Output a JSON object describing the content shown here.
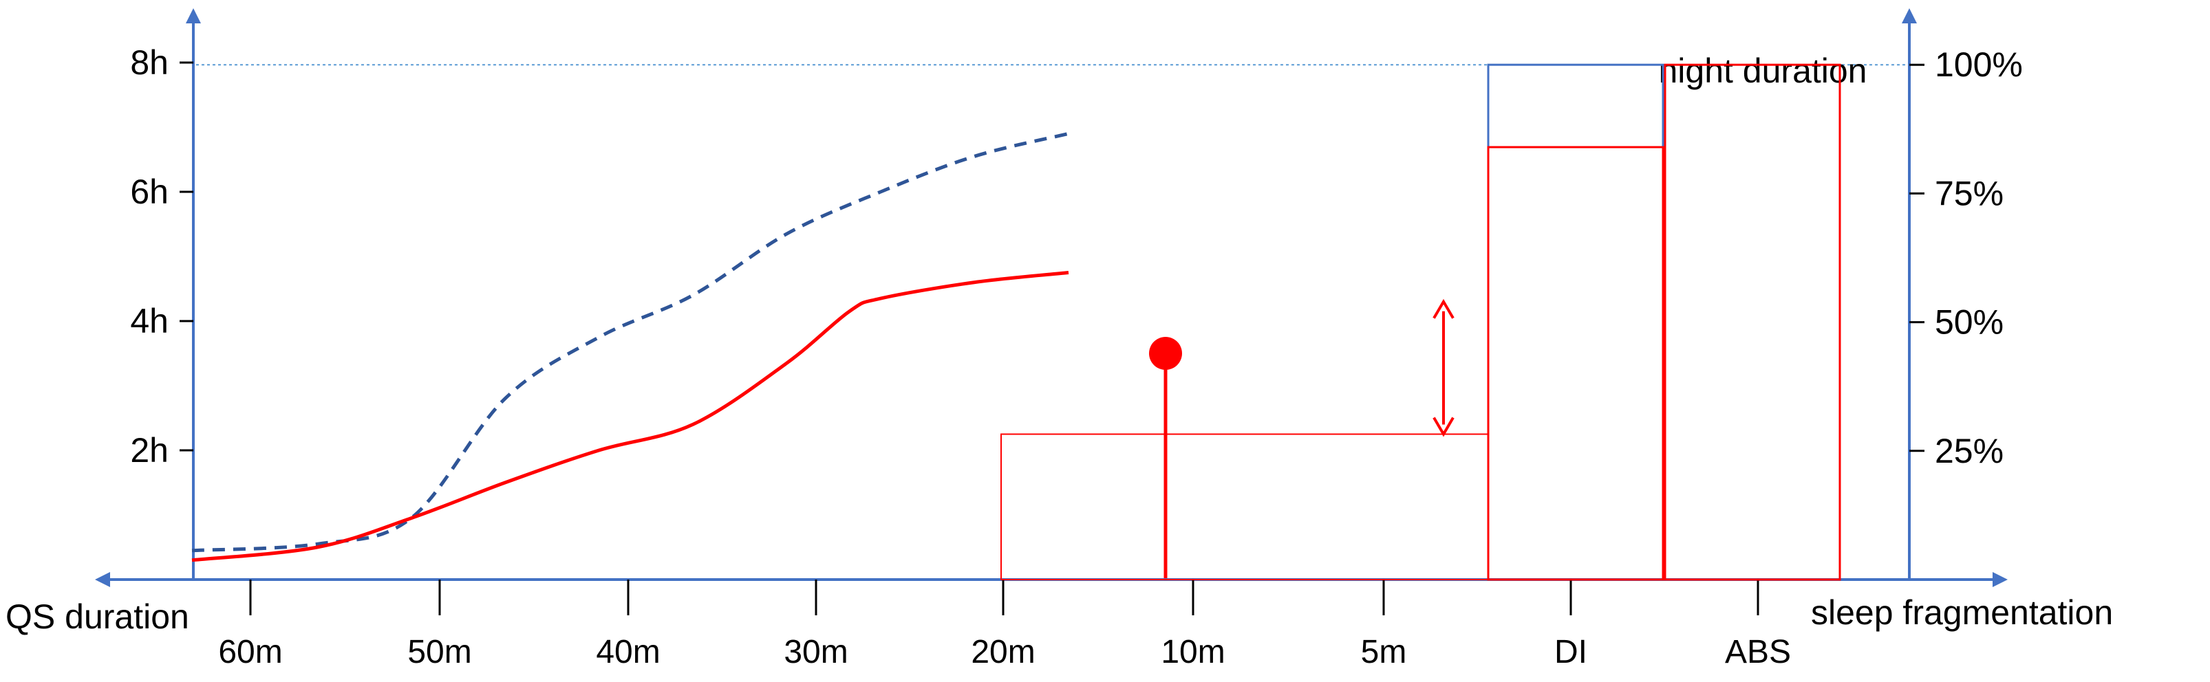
{
  "colors": {
    "axis": "#4472C4",
    "red": "#FF0000",
    "dashed": "#2F5597",
    "ref_line": "#5B9BD5"
  },
  "chart_data": {
    "type": "line",
    "left_axis": {
      "ticks": [
        {
          "value": 2,
          "label": "2h"
        },
        {
          "value": 4,
          "label": "4h"
        },
        {
          "value": 6,
          "label": "6h"
        },
        {
          "value": 8,
          "label": "8h"
        }
      ]
    },
    "right_axis": {
      "ticks": [
        {
          "value": 25,
          "label": "25%"
        },
        {
          "value": 50,
          "label": "50%"
        },
        {
          "value": 75,
          "label": "75%"
        },
        {
          "value": 100,
          "label": "100%"
        }
      ]
    },
    "x_axis": {
      "left_title": "QS duration",
      "right_title": "sleep fragmentation",
      "categories": [
        "60m",
        "50m",
        "40m",
        "30m",
        "20m",
        "10m",
        "5m",
        "DI",
        "ABS"
      ]
    },
    "reference_line": {
      "label": "night duration",
      "value_percent": 100,
      "value_hours": 7.45
    },
    "series": [
      {
        "style": "dashed",
        "color": "#2F5597",
        "points": [
          [
            -2,
            0.45
          ],
          [
            0,
            0.55
          ],
          [
            1.5,
            0.95
          ],
          [
            3,
            2.8
          ],
          [
            4.5,
            3.75
          ],
          [
            6,
            4.4
          ],
          [
            7.5,
            5.35
          ],
          [
            9,
            6.0
          ],
          [
            10.5,
            6.55
          ],
          [
            12,
            6.9
          ]
        ]
      },
      {
        "style": "solid",
        "color": "#FF0000",
        "points": [
          [
            -2,
            0.3
          ],
          [
            0,
            0.5
          ],
          [
            1.5,
            0.95
          ],
          [
            3,
            1.5
          ],
          [
            4.5,
            2.0
          ],
          [
            6,
            2.4
          ],
          [
            7.5,
            3.35
          ],
          [
            8.5,
            4.15
          ],
          [
            9,
            4.35
          ],
          [
            10.5,
            4.6
          ],
          [
            12,
            4.75
          ]
        ]
      }
    ],
    "bars": [
      {
        "category": "DI",
        "value_percent": 84,
        "outline_percent": 100
      },
      {
        "category": "ABS",
        "value_percent": 100
      }
    ],
    "highlight": {
      "x_position": "10m",
      "marker": "filled circle"
    },
    "grid": false
  }
}
